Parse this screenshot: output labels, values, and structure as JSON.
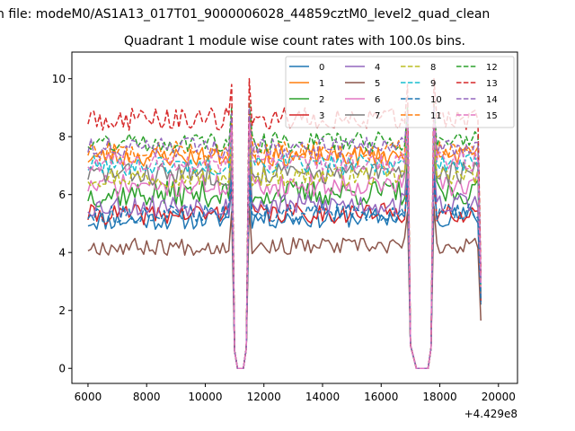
{
  "figure": {
    "suptitle": "n file: modeM0/AS1A13_017T01_9000006028_44859cztM0_level2_quad_clean",
    "title": "Quadrant 1 module wise count rates with 100.0s bins."
  },
  "chart_data": {
    "type": "line",
    "title": "Quadrant 1 module wise count rates with 100.0s bins.",
    "xlabel": "",
    "ylabel": "",
    "x_offset_label": "+4.429e8",
    "xlim": [
      5450,
      20650
    ],
    "ylim": [
      -0.52,
      10.92
    ],
    "xticks": [
      6000,
      8000,
      10000,
      12000,
      14000,
      16000,
      18000,
      20000
    ],
    "yticks": [
      0,
      2,
      4,
      6,
      8,
      10
    ],
    "grid": false,
    "legend": {
      "position": "top-right",
      "columns": 4
    },
    "x_start": 6000,
    "x_step": 100,
    "x_end": 19400,
    "gaps": [
      {
        "down_start": 10900,
        "zero_from": 11100,
        "zero_to": 11300,
        "up_end": 11500
      },
      {
        "down_start": 16900,
        "zero_from": 17200,
        "zero_to": 17600,
        "up_end": 17800
      }
    ],
    "series": [
      {
        "name": "0",
        "color": "#1f77b4",
        "dash": "solid",
        "base": 5.1,
        "slope": 0.0012,
        "amp": 0.35,
        "seed": 11,
        "final": 2.2
      },
      {
        "name": "1",
        "color": "#ff7f0e",
        "dash": "solid",
        "base": 7.3,
        "slope": 0.0004,
        "amp": 0.35,
        "seed": 23,
        "final": 2.6
      },
      {
        "name": "2",
        "color": "#2ca02c",
        "dash": "solid",
        "base": 6.0,
        "slope": 0.0006,
        "amp": 0.45,
        "seed": 37,
        "final": 2.4
      },
      {
        "name": "3",
        "color": "#d62728",
        "dash": "solid",
        "base": 5.3,
        "slope": 0.0007,
        "amp": 0.35,
        "seed": 41,
        "final": 2.3
      },
      {
        "name": "4",
        "color": "#9467bd",
        "dash": "solid",
        "base": 5.6,
        "slope": 0.0007,
        "amp": 0.4,
        "seed": 53,
        "final": 2.5
      },
      {
        "name": "5",
        "color": "#8c564b",
        "dash": "solid",
        "base": 4.2,
        "slope": 0.0002,
        "amp": 0.3,
        "seed": 67,
        "final": 1.65
      },
      {
        "name": "6",
        "color": "#e377c2",
        "dash": "solid",
        "base": 6.3,
        "slope": 0.0005,
        "amp": 0.4,
        "seed": 71,
        "final": 2.7
      },
      {
        "name": "7",
        "color": "#7f7f7f",
        "dash": "solid",
        "base": 6.7,
        "slope": 0.0004,
        "amp": 0.4,
        "seed": 83,
        "final": 2.6
      },
      {
        "name": "8",
        "color": "#bcbd22",
        "dash": "dashed",
        "base": 6.6,
        "slope": 0.0005,
        "amp": 0.35,
        "seed": 97,
        "final": 2.8
      },
      {
        "name": "9",
        "color": "#17becf",
        "dash": "dashed",
        "base": 7.0,
        "slope": 0.0004,
        "amp": 0.35,
        "seed": 101,
        "final": 2.9
      },
      {
        "name": "10",
        "color": "#1f77b4",
        "dash": "dashed",
        "base": 5.3,
        "slope": 0.001,
        "amp": 0.3,
        "seed": 113,
        "final": 2.3
      },
      {
        "name": "11",
        "color": "#ff7f0e",
        "dash": "dashed",
        "base": 7.5,
        "slope": 0.0003,
        "amp": 0.35,
        "seed": 127,
        "final": 3.0
      },
      {
        "name": "12",
        "color": "#2ca02c",
        "dash": "dashed",
        "base": 7.8,
        "slope": 0.0003,
        "amp": 0.35,
        "seed": 131,
        "final": 3.1
      },
      {
        "name": "13",
        "color": "#d62728",
        "dash": "dashed",
        "base": 8.6,
        "slope": 0.0002,
        "amp": 0.4,
        "seed": 149,
        "final": 3.3
      },
      {
        "name": "14",
        "color": "#9467bd",
        "dash": "dashed",
        "base": 7.6,
        "slope": 0.0003,
        "amp": 0.35,
        "seed": 151,
        "final": 3.0
      },
      {
        "name": "15",
        "color": "#e377c2",
        "dash": "dashed",
        "base": 7.1,
        "slope": 0.0003,
        "amp": 0.35,
        "seed": 163,
        "final": 2.8
      }
    ]
  }
}
